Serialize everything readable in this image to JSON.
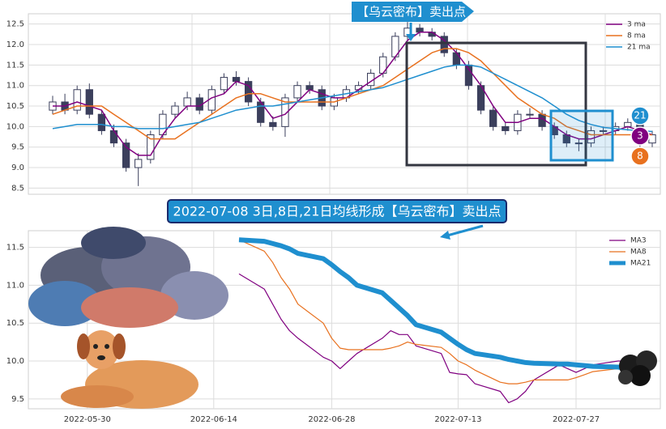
{
  "chart_data": [
    {
      "type": "candlestick",
      "annotation": "【乌云密布】卖出点",
      "badges": [
        "21",
        "3",
        "8"
      ],
      "open": [
        10.4,
        10.6,
        10.4,
        10.9,
        10.3,
        9.9,
        9.6,
        9.0,
        9.2,
        9.8,
        10.3,
        10.5,
        10.7,
        10.4,
        10.9,
        11.2,
        11.1,
        10.6,
        10.1,
        10.0,
        10.7,
        11.0,
        10.9,
        10.5,
        10.7,
        10.9,
        11.0,
        11.3,
        11.7,
        12.2,
        12.4,
        12.3,
        12.2,
        11.8,
        11.5,
        11.0,
        10.4,
        10.0,
        9.9,
        10.3,
        10.3,
        10.0,
        9.8,
        9.6,
        9.6,
        9.9,
        9.9,
        10.0,
        10.1,
        9.6
      ],
      "high": [
        10.75,
        10.8,
        11.0,
        11.05,
        10.4,
        10.05,
        9.7,
        9.35,
        9.9,
        10.4,
        10.6,
        10.85,
        10.8,
        11.0,
        11.3,
        11.35,
        11.2,
        10.7,
        10.25,
        10.8,
        11.1,
        11.1,
        11.0,
        10.8,
        11.0,
        11.1,
        11.4,
        11.8,
        12.3,
        12.55,
        12.5,
        12.4,
        12.3,
        11.9,
        11.6,
        11.1,
        10.5,
        10.1,
        10.4,
        10.45,
        10.4,
        10.1,
        9.9,
        9.7,
        10.0,
        10.0,
        10.1,
        10.2,
        10.2,
        9.9
      ],
      "low": [
        10.3,
        10.3,
        10.3,
        10.2,
        9.8,
        9.5,
        8.9,
        8.55,
        9.1,
        9.7,
        10.2,
        10.4,
        10.3,
        10.3,
        10.8,
        11.0,
        10.5,
        10.0,
        9.9,
        9.75,
        10.6,
        10.8,
        10.4,
        10.4,
        10.6,
        10.8,
        10.9,
        11.2,
        11.6,
        12.1,
        12.2,
        12.1,
        11.7,
        11.4,
        10.9,
        10.3,
        9.9,
        9.8,
        9.8,
        10.2,
        9.9,
        9.7,
        9.5,
        9.4,
        9.5,
        9.8,
        9.8,
        9.9,
        9.5,
        9.5
      ],
      "close": [
        10.6,
        10.4,
        10.9,
        10.3,
        9.9,
        9.6,
        9.0,
        9.2,
        9.8,
        10.3,
        10.5,
        10.7,
        10.4,
        10.9,
        11.2,
        11.1,
        10.6,
        10.1,
        10.0,
        10.7,
        11.0,
        10.9,
        10.5,
        10.7,
        10.9,
        11.0,
        11.3,
        11.7,
        12.2,
        12.4,
        12.3,
        12.2,
        11.8,
        11.5,
        11.0,
        10.4,
        10.0,
        9.9,
        10.3,
        10.3,
        10.0,
        9.8,
        9.6,
        9.6,
        9.9,
        9.9,
        10.0,
        10.1,
        9.6,
        9.8
      ],
      "up_color": "#ffffff",
      "down_color": "#3b3f5c",
      "series": [
        {
          "name": "3 ma",
          "color": "#800080",
          "values": [
            10.5,
            10.5,
            10.6,
            10.5,
            10.4,
            9.9,
            9.5,
            9.3,
            9.3,
            9.8,
            10.2,
            10.5,
            10.5,
            10.7,
            10.8,
            11.1,
            11.0,
            10.6,
            10.2,
            10.3,
            10.6,
            10.9,
            10.8,
            10.7,
            10.7,
            10.9,
            11.1,
            11.3,
            11.7,
            12.1,
            12.3,
            12.3,
            12.1,
            11.8,
            11.4,
            11.0,
            10.5,
            10.1,
            10.1,
            10.2,
            10.2,
            10.0,
            9.8,
            9.7,
            9.7,
            9.8,
            9.9,
            10.0,
            9.9,
            9.8
          ]
        },
        {
          "name": "8 ma",
          "color": "#e8711f",
          "values": [
            10.3,
            10.4,
            10.5,
            10.5,
            10.5,
            10.3,
            10.1,
            9.9,
            9.7,
            9.7,
            9.7,
            9.9,
            10.1,
            10.3,
            10.5,
            10.7,
            10.8,
            10.8,
            10.7,
            10.6,
            10.6,
            10.6,
            10.6,
            10.6,
            10.7,
            10.8,
            10.9,
            11.0,
            11.2,
            11.4,
            11.6,
            11.8,
            11.9,
            11.9,
            11.8,
            11.6,
            11.3,
            11.0,
            10.7,
            10.5,
            10.3,
            10.2,
            10.0,
            9.9,
            9.8,
            9.8,
            9.8,
            9.8,
            9.8,
            9.8
          ]
        },
        {
          "name": "21 ma",
          "color": "#1f8fcf",
          "values": [
            9.95,
            10.0,
            10.05,
            10.05,
            10.05,
            10.0,
            10.0,
            9.95,
            9.95,
            9.95,
            10.0,
            10.05,
            10.1,
            10.2,
            10.3,
            10.4,
            10.45,
            10.5,
            10.5,
            10.55,
            10.6,
            10.65,
            10.7,
            10.75,
            10.8,
            10.85,
            10.9,
            10.95,
            11.05,
            11.15,
            11.25,
            11.35,
            11.45,
            11.5,
            11.5,
            11.45,
            11.3,
            11.15,
            11.0,
            10.85,
            10.7,
            10.5,
            10.3,
            10.15,
            10.05,
            9.98,
            9.95,
            9.92,
            9.9,
            9.88
          ]
        }
      ],
      "ylim": [
        8.35,
        12.75
      ],
      "yticks": [
        8.5,
        {
          "value": 9,
          "label": "9.0"
        },
        9.5,
        {
          "value": 10,
          "label": "10.0"
        },
        10.5,
        {
          "value": 11,
          "label": "11.0"
        },
        11.5,
        {
          "value": 12,
          "label": "12.0"
        },
        12.5
      ],
      "grid": true,
      "legend": "upper right"
    },
    {
      "type": "line",
      "annotation": "2022-07-08 3日,8日,21日均线形成【乌云密布】卖出点",
      "x": [
        "2022-06-17",
        "2022-06-20",
        "2022-06-21",
        "2022-06-22",
        "2022-06-23",
        "2022-06-24",
        "2022-06-27",
        "2022-06-28",
        "2022-06-29",
        "2022-06-30",
        "2022-07-01",
        "2022-07-04",
        "2022-07-05",
        "2022-07-06",
        "2022-07-07",
        "2022-07-08",
        "2022-07-11",
        "2022-07-12",
        "2022-07-13",
        "2022-07-14",
        "2022-07-15",
        "2022-07-18",
        "2022-07-19",
        "2022-07-20",
        "2022-07-21",
        "2022-07-22",
        "2022-07-25",
        "2022-07-26",
        "2022-07-27",
        "2022-07-28",
        "2022-07-29",
        "2022-08-01",
        "2022-08-02"
      ],
      "series": [
        {
          "name": "MA3",
          "color": "#800080",
          "width": 1.2,
          "values": [
            11.15,
            10.95,
            10.75,
            10.55,
            10.4,
            10.3,
            10.05,
            10.0,
            9.9,
            10.0,
            10.1,
            10.3,
            10.4,
            10.35,
            10.35,
            10.2,
            10.1,
            9.85,
            9.83,
            9.82,
            9.7,
            9.6,
            9.45,
            9.5,
            9.6,
            9.75,
            9.95,
            9.9,
            9.85,
            9.9,
            9.95,
            10.0,
            10.0
          ]
        },
        {
          "name": "MA8",
          "color": "#e8711f",
          "width": 1.2,
          "values": [
            11.6,
            11.45,
            11.3,
            11.1,
            10.95,
            10.75,
            10.5,
            10.3,
            10.17,
            10.15,
            10.15,
            10.15,
            10.17,
            10.2,
            10.25,
            10.22,
            10.18,
            10.1,
            10.0,
            9.95,
            9.88,
            9.72,
            9.7,
            9.7,
            9.72,
            9.75,
            9.75,
            9.75,
            9.78,
            9.82,
            9.86,
            9.9,
            9.95
          ]
        },
        {
          "name": "MA21",
          "color": "#1f8fcf",
          "width": 6,
          "values": [
            11.6,
            11.58,
            11.55,
            11.52,
            11.48,
            11.42,
            11.35,
            11.27,
            11.18,
            11.1,
            11.0,
            10.9,
            10.8,
            10.7,
            10.6,
            10.48,
            10.38,
            10.3,
            10.22,
            10.15,
            10.1,
            10.05,
            10.02,
            10.0,
            9.98,
            9.97,
            9.96,
            9.96,
            9.95,
            9.94,
            9.93,
            9.92,
            9.9
          ]
        }
      ],
      "xlim": [
        "2022-05-23",
        "2022-08-06"
      ],
      "xticks": [
        "2022-05-30",
        "2022-06-14",
        "2022-06-28",
        "2022-07-13",
        "2022-07-27"
      ],
      "ylim": [
        9.37,
        11.72
      ],
      "yticks": [
        9.5,
        {
          "value": 10,
          "label": "10.0"
        },
        10.5,
        {
          "value": 11,
          "label": "11.0"
        },
        11.5
      ],
      "grid": true,
      "legend": "upper right"
    }
  ]
}
